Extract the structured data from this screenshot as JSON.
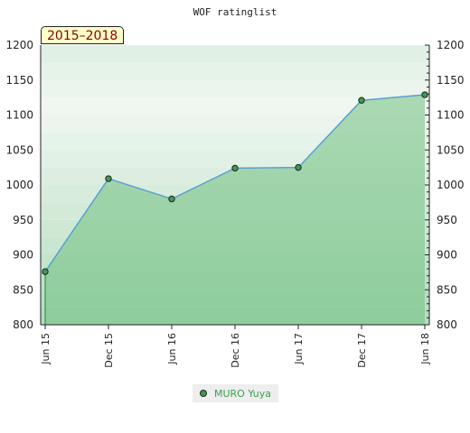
{
  "chart_data": {
    "type": "area",
    "title": "WOF ratinglist",
    "period_label": "2015–2018",
    "categories": [
      "Jun 15",
      "Dec 15",
      "Jun 16",
      "Dec 16",
      "Jun 17",
      "Dec 17",
      "Jun 18"
    ],
    "ylim": [
      800,
      1200
    ],
    "yticks": [
      800,
      850,
      900,
      950,
      1000,
      1050,
      1100,
      1150,
      1200
    ],
    "series": [
      {
        "name": "MURO Yuya",
        "values": [
          876,
          1009,
          980,
          1024,
          1025,
          1121,
          1129
        ]
      }
    ],
    "legend_position": "bottom-center",
    "colors": {
      "line": "#5a9fd4",
      "fill": "#6fbf7f",
      "marker": "#3a9d4f",
      "band_dark": "#b3dcbe",
      "band_light": "#f0f7f1"
    }
  }
}
